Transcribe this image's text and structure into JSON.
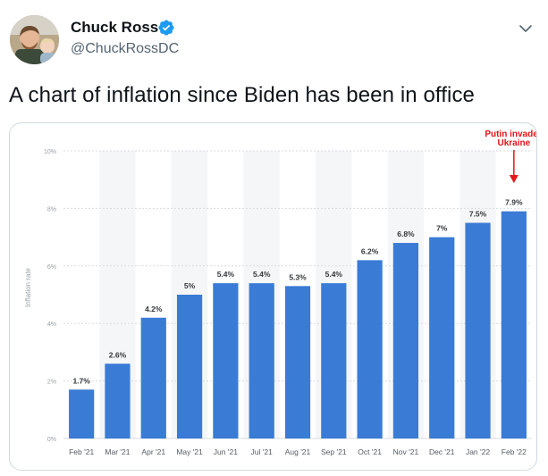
{
  "tweet": {
    "author_name": "Chuck Ross",
    "handle": "@ChuckRossDC",
    "text": "A chart of inflation since Biden has been in office"
  },
  "icons": {
    "verified": "verified-badge-icon",
    "more": "chevron-down-icon",
    "avatar": "avatar-photo"
  },
  "colors": {
    "bar": "#3a7bd5",
    "annotation": "#e3151a",
    "verified": "#1d9bf0"
  },
  "chart_data": {
    "type": "bar",
    "categories": [
      "Feb '21",
      "Mar '21",
      "Apr '21",
      "May '21",
      "Jun '21",
      "Jul '21",
      "Aug '21",
      "Sep '21",
      "Oct '21",
      "Nov '21",
      "Dec '21",
      "Jan '22",
      "Feb '22"
    ],
    "values": [
      1.7,
      2.6,
      4.2,
      5.0,
      5.4,
      5.4,
      5.3,
      5.4,
      6.2,
      6.8,
      7.0,
      7.5,
      7.9
    ],
    "value_labels": [
      "1.7%",
      "2.6%",
      "4.2%",
      "5%",
      "5.4%",
      "5.4%",
      "5.3%",
      "5.4%",
      "6.2%",
      "6.8%",
      "7%",
      "7.5%",
      "7.9%"
    ],
    "ylabel": "Inflation rate",
    "ylim": [
      0,
      10
    ],
    "yticks": [
      0,
      2,
      4,
      6,
      8,
      10
    ],
    "ytick_labels": [
      "0%",
      "2%",
      "4%",
      "6%",
      "8%",
      "10%"
    ],
    "grid": true,
    "annotation": {
      "lines": [
        "Putin invades",
        "Ukraine"
      ],
      "target_category": "Feb '22"
    }
  }
}
